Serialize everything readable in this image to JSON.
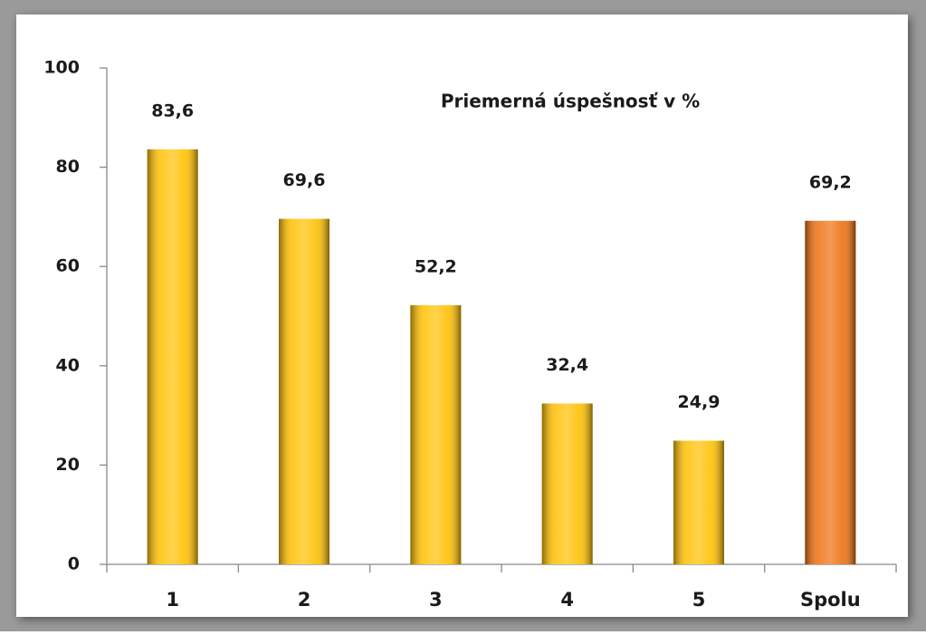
{
  "chart_data": {
    "type": "bar",
    "title": "Priemerná úspešnosť v  %",
    "categories": [
      "1",
      "2",
      "3",
      "4",
      "5",
      "Spolu"
    ],
    "values": [
      83.6,
      69.6,
      52.2,
      32.4,
      24.9,
      69.2
    ],
    "value_labels": [
      "83,6",
      "69,6",
      "52,2",
      "32,4",
      "24,9",
      "69,2"
    ],
    "colors": [
      "#ffc000",
      "#ffc000",
      "#ffc000",
      "#ffc000",
      "#ffc000",
      "#ee6f0f"
    ],
    "ylim": [
      0,
      100
    ],
    "yticks": [
      0,
      20,
      40,
      60,
      80,
      100
    ],
    "grid": false
  }
}
